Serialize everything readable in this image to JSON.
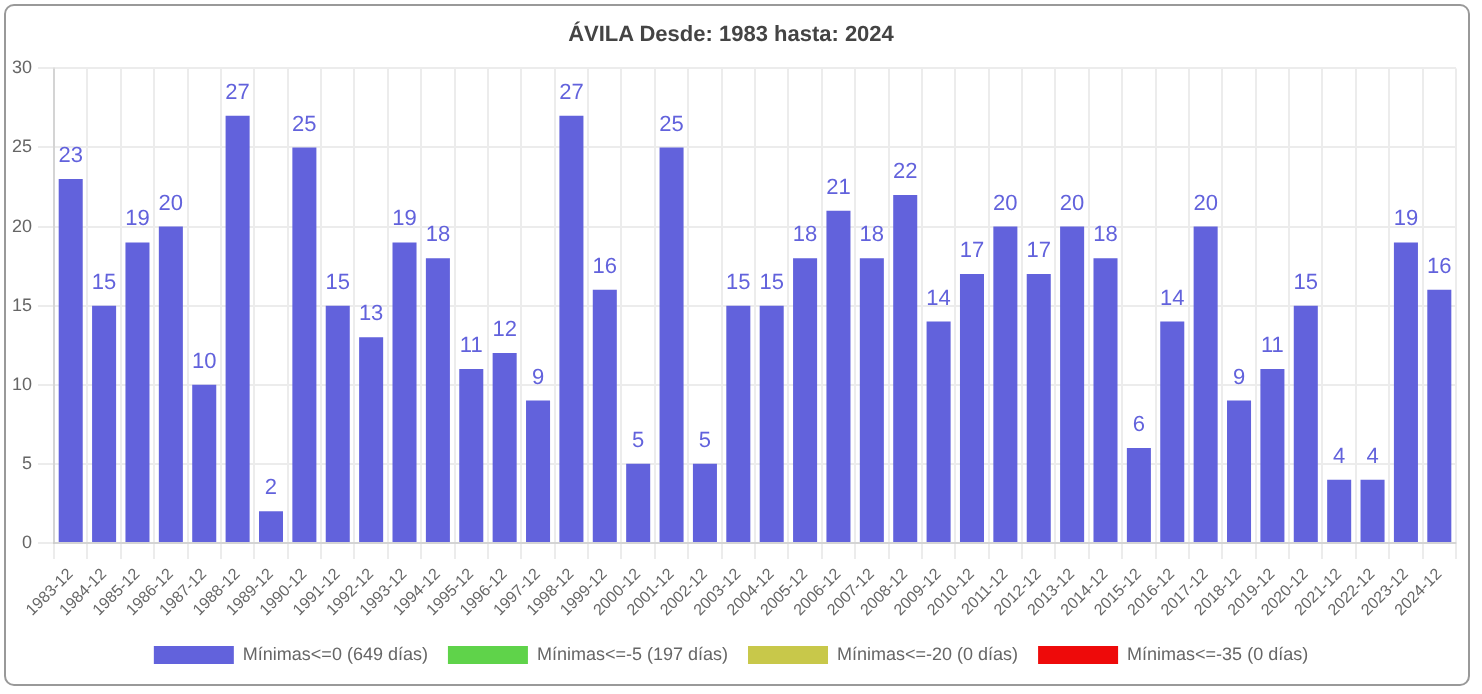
{
  "chart_data": {
    "type": "bar",
    "title": "ÁVILA Desde: 1983 hasta: 2024",
    "categories": [
      "1983-12",
      "1984-12",
      "1985-12",
      "1986-12",
      "1987-12",
      "1988-12",
      "1989-12",
      "1990-12",
      "1991-12",
      "1992-12",
      "1993-12",
      "1994-12",
      "1995-12",
      "1996-12",
      "1997-12",
      "1998-12",
      "1999-12",
      "2000-12",
      "2001-12",
      "2002-12",
      "2003-12",
      "2004-12",
      "2005-12",
      "2006-12",
      "2007-12",
      "2008-12",
      "2009-12",
      "2010-12",
      "2011-12",
      "2012-12",
      "2013-12",
      "2014-12",
      "2015-12",
      "2016-12",
      "2017-12",
      "2018-12",
      "2019-12",
      "2020-12",
      "2021-12",
      "2022-12",
      "2023-12",
      "2024-12"
    ],
    "series": [
      {
        "name": "Mínimas<=0 (649 días)",
        "color": "#6262dc",
        "values": [
          23,
          15,
          19,
          20,
          10,
          27,
          2,
          25,
          15,
          13,
          19,
          18,
          11,
          12,
          9,
          27,
          16,
          5,
          25,
          5,
          15,
          15,
          18,
          21,
          18,
          22,
          14,
          17,
          20,
          17,
          20,
          18,
          6,
          14,
          20,
          9,
          11,
          15,
          4,
          4,
          19,
          16
        ]
      },
      {
        "name": "Mínimas<=-5 (197 días)",
        "color": "#5fd34a",
        "values": [
          null,
          null,
          null,
          null,
          null,
          null,
          null,
          null,
          null,
          null,
          null,
          null,
          null,
          null,
          null,
          null,
          null,
          null,
          null,
          null,
          null,
          null,
          null,
          null,
          null,
          null,
          null,
          null,
          null,
          null,
          null,
          null,
          null,
          null,
          null,
          null,
          null,
          null,
          null,
          null,
          null,
          null
        ]
      },
      {
        "name": "Mínimas<=-20 (0 días)",
        "color": "#c8c84a",
        "values": [
          null,
          null,
          null,
          null,
          null,
          null,
          null,
          null,
          null,
          null,
          null,
          null,
          null,
          null,
          null,
          null,
          null,
          null,
          null,
          null,
          null,
          null,
          null,
          null,
          null,
          null,
          null,
          null,
          null,
          null,
          null,
          null,
          null,
          null,
          null,
          null,
          null,
          null,
          null,
          null,
          null,
          null
        ]
      },
      {
        "name": "Mínimas<=-35 (0 días)",
        "color": "#ee0a0a",
        "values": [
          null,
          null,
          null,
          null,
          null,
          null,
          null,
          null,
          null,
          null,
          null,
          null,
          null,
          null,
          null,
          null,
          null,
          null,
          null,
          null,
          null,
          null,
          null,
          null,
          null,
          null,
          null,
          null,
          null,
          null,
          null,
          null,
          null,
          null,
          null,
          null,
          null,
          null,
          null,
          null,
          null,
          null
        ]
      }
    ],
    "ylim": [
      0,
      30
    ],
    "yticks": [
      0,
      5,
      10,
      15,
      20,
      25,
      30
    ],
    "grid": true,
    "legend": "bottom",
    "data_labels": true
  }
}
